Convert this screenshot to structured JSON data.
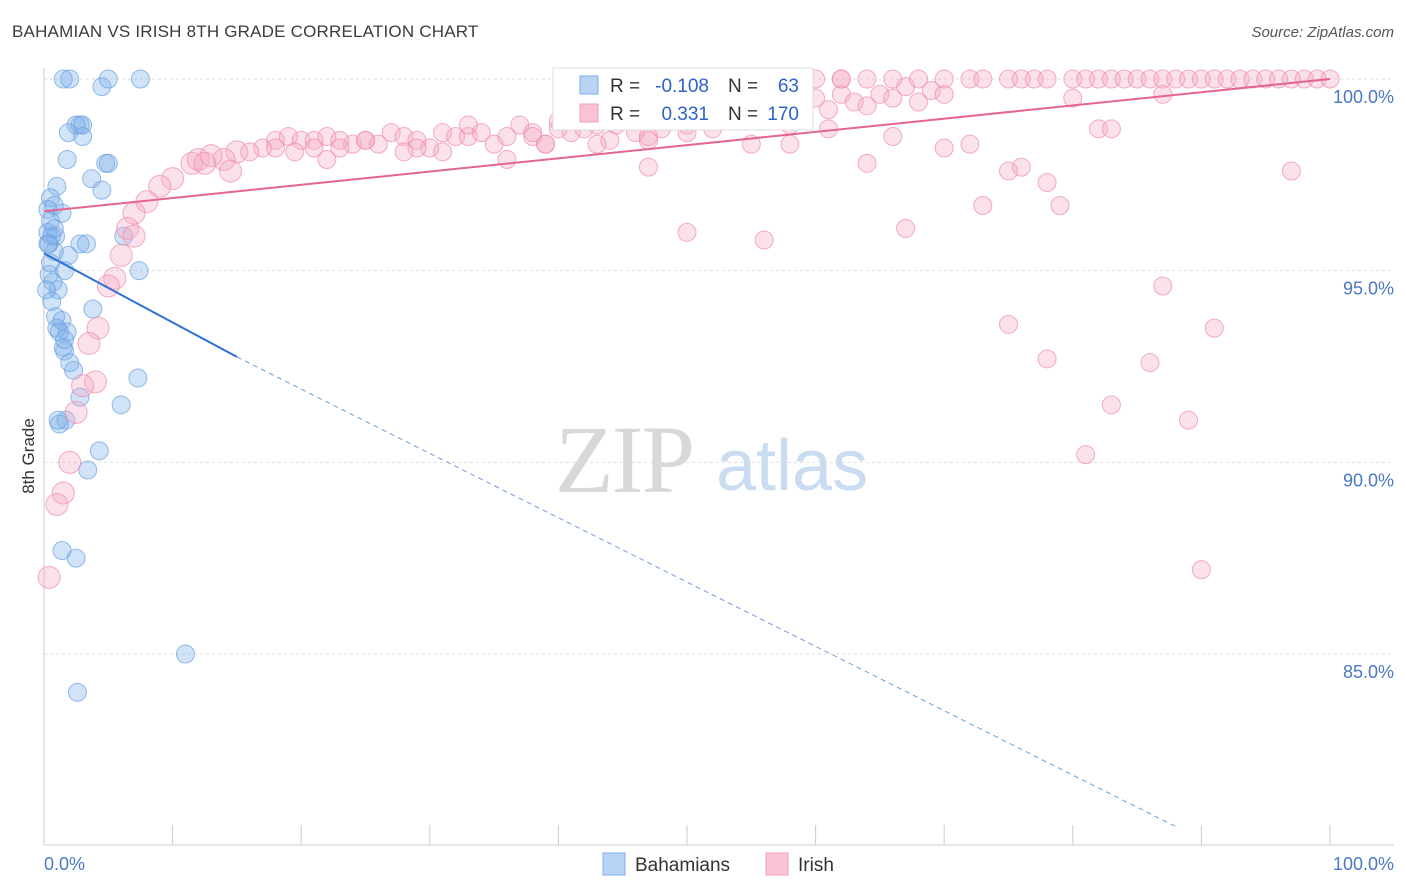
{
  "title": "BAHAMIAN VS IRISH 8TH GRADE CORRELATION CHART",
  "source": "Source: ZipAtlas.com",
  "watermark": {
    "zip": "ZIP",
    "atlas": "atlas"
  },
  "legend_top": [
    {
      "name": "Bahamians",
      "r_label": "R =",
      "r_value": "-0.108",
      "n_label": "N =",
      "n_value": "63",
      "color": "#7aaee8"
    },
    {
      "name": "Irish",
      "r_label": "R =",
      "r_value": "0.331",
      "n_label": "N =",
      "n_value": "170",
      "color": "#f0a0bb"
    }
  ],
  "chart_data": {
    "type": "scatter",
    "title": "BAHAMIAN VS IRISH 8TH GRADE CORRELATION CHART",
    "xlabel": "",
    "ylabel": "8th Grade",
    "xlim": [
      0,
      100
    ],
    "ylim": [
      80.5,
      100.5
    ],
    "x_tick_labels": [
      "0.0%",
      "100.0%"
    ],
    "y_ticks": [
      {
        "value": 100,
        "label": "100.0%"
      },
      {
        "value": 95,
        "label": "95.0%"
      },
      {
        "value": 90,
        "label": "90.0%"
      },
      {
        "value": 85,
        "label": "85.0%"
      }
    ],
    "series": [
      {
        "name": "Bahamians",
        "color": "#6a9fe0",
        "points": [
          [
            1.5,
            100
          ],
          [
            2.0,
            100
          ],
          [
            4.5,
            99.8
          ],
          [
            5.0,
            100
          ],
          [
            7.5,
            100
          ],
          [
            2.5,
            98.8
          ],
          [
            2.8,
            98.8
          ],
          [
            3.0,
            98.8
          ],
          [
            1.9,
            98.6
          ],
          [
            3.0,
            98.5
          ],
          [
            1.8,
            97.9
          ],
          [
            4.8,
            97.8
          ],
          [
            5.0,
            97.8
          ],
          [
            1.0,
            97.2
          ],
          [
            3.7,
            97.4
          ],
          [
            4.5,
            97.1
          ],
          [
            0.5,
            96.9
          ],
          [
            0.3,
            96.6
          ],
          [
            0.8,
            96.7
          ],
          [
            1.4,
            96.5
          ],
          [
            0.3,
            96.0
          ],
          [
            0.6,
            95.9
          ],
          [
            0.9,
            95.9
          ],
          [
            0.4,
            95.7
          ],
          [
            2.8,
            95.7
          ],
          [
            3.3,
            95.7
          ],
          [
            1.9,
            95.4
          ],
          [
            6.2,
            95.9
          ],
          [
            0.4,
            94.9
          ],
          [
            1.6,
            95.0
          ],
          [
            7.4,
            95.0
          ],
          [
            0.7,
            94.7
          ],
          [
            1.1,
            94.5
          ],
          [
            0.2,
            94.5
          ],
          [
            3.8,
            94.0
          ],
          [
            0.9,
            93.8
          ],
          [
            1.4,
            93.7
          ],
          [
            1.0,
            93.5
          ],
          [
            1.8,
            93.4
          ],
          [
            1.5,
            93.0
          ],
          [
            1.6,
            92.9
          ],
          [
            2.3,
            92.4
          ],
          [
            7.3,
            92.2
          ],
          [
            2.8,
            91.7
          ],
          [
            6.0,
            91.5
          ],
          [
            1.7,
            91.1
          ],
          [
            1.2,
            91.0
          ],
          [
            4.3,
            90.3
          ],
          [
            3.4,
            89.8
          ],
          [
            1.4,
            87.7
          ],
          [
            2.5,
            87.5
          ],
          [
            11.0,
            85.0
          ],
          [
            2.6,
            84.0
          ],
          [
            0.5,
            96.3
          ],
          [
            0.8,
            95.5
          ],
          [
            0.5,
            95.2
          ],
          [
            1.2,
            93.4
          ],
          [
            2.0,
            92.6
          ],
          [
            1.1,
            91.1
          ],
          [
            0.6,
            94.2
          ],
          [
            0.8,
            96.1
          ],
          [
            0.3,
            95.7
          ],
          [
            1.6,
            93.2
          ]
        ],
        "trend": {
          "x": [
            0,
            15
          ],
          "y": [
            95.45,
            92.75
          ]
        },
        "trend_dashed": {
          "x": [
            15,
            88
          ],
          "y": [
            92.75,
            80.5
          ]
        }
      },
      {
        "name": "Irish",
        "color": "#f08aab",
        "points": [
          [
            15,
            98.1
          ],
          [
            17,
            98.2
          ],
          [
            18,
            98.4
          ],
          [
            19,
            98.5
          ],
          [
            20,
            98.4
          ],
          [
            21,
            98.4
          ],
          [
            22,
            98.5
          ],
          [
            23,
            98.4
          ],
          [
            24,
            98.3
          ],
          [
            25,
            98.4
          ],
          [
            26,
            98.3
          ],
          [
            27,
            98.6
          ],
          [
            28,
            98.5
          ],
          [
            29,
            98.4
          ],
          [
            30,
            98.2
          ],
          [
            31,
            98.6
          ],
          [
            32,
            98.5
          ],
          [
            33,
            98.5
          ],
          [
            34,
            98.6
          ],
          [
            35,
            98.3
          ],
          [
            36,
            98.5
          ],
          [
            37,
            98.8
          ],
          [
            38,
            98.6
          ],
          [
            39,
            98.3
          ],
          [
            40,
            98.7
          ],
          [
            41,
            98.6
          ],
          [
            42,
            98.7
          ],
          [
            43,
            98.8
          ],
          [
            44,
            98.4
          ],
          [
            45,
            98.9
          ],
          [
            46,
            98.6
          ],
          [
            47,
            98.4
          ],
          [
            48,
            98.7
          ],
          [
            49,
            99.0
          ],
          [
            50,
            98.8
          ],
          [
            51,
            99.2
          ],
          [
            52,
            98.9
          ],
          [
            53,
            99.0
          ],
          [
            54,
            99.3
          ],
          [
            55,
            99.1
          ],
          [
            56,
            99.0
          ],
          [
            57,
            99.1
          ],
          [
            58,
            99.2
          ],
          [
            59,
            99.0
          ],
          [
            60,
            99.5
          ],
          [
            61,
            99.2
          ],
          [
            62,
            99.6
          ],
          [
            63,
            99.4
          ],
          [
            64,
            99.3
          ],
          [
            65,
            99.6
          ],
          [
            66,
            99.5
          ],
          [
            67,
            99.8
          ],
          [
            68,
            99.4
          ],
          [
            69,
            99.7
          ],
          [
            70,
            99.6
          ],
          [
            72,
            100
          ],
          [
            73,
            100
          ],
          [
            75,
            100
          ],
          [
            76,
            100
          ],
          [
            77,
            100
          ],
          [
            78,
            100
          ],
          [
            80,
            100
          ],
          [
            81,
            100
          ],
          [
            82,
            100
          ],
          [
            83,
            100
          ],
          [
            84,
            100
          ],
          [
            85,
            100
          ],
          [
            86,
            100
          ],
          [
            87,
            100
          ],
          [
            88,
            100
          ],
          [
            89,
            100
          ],
          [
            90,
            100
          ],
          [
            91,
            100
          ],
          [
            92,
            100
          ],
          [
            93,
            100
          ],
          [
            94,
            100
          ],
          [
            95,
            100
          ],
          [
            96,
            100
          ],
          [
            97,
            100
          ],
          [
            98,
            100
          ],
          [
            99,
            100
          ],
          [
            100,
            100
          ],
          [
            60,
            100
          ],
          [
            62,
            100
          ],
          [
            64,
            100
          ],
          [
            66,
            100
          ],
          [
            68,
            100
          ],
          [
            70,
            100
          ],
          [
            62,
            100
          ],
          [
            58,
            100
          ],
          [
            56,
            100
          ],
          [
            54,
            100
          ],
          [
            52,
            100
          ],
          [
            50,
            100
          ],
          [
            11.5,
            97.8
          ],
          [
            12,
            97.9
          ],
          [
            10,
            97.4
          ],
          [
            9,
            97.2
          ],
          [
            8,
            96.8
          ],
          [
            7,
            96.5
          ],
          [
            6.5,
            96.1
          ],
          [
            7,
            95.9
          ],
          [
            6,
            95.4
          ],
          [
            5.5,
            94.8
          ],
          [
            5,
            94.6
          ],
          [
            4.2,
            93.5
          ],
          [
            3.5,
            93.1
          ],
          [
            4,
            92.1
          ],
          [
            3,
            92.0
          ],
          [
            2.5,
            91.3
          ],
          [
            2,
            90.0
          ],
          [
            1.5,
            89.2
          ],
          [
            1.0,
            88.9
          ],
          [
            0.4,
            87.0
          ],
          [
            14,
            97.9
          ],
          [
            13,
            98.0
          ],
          [
            12.5,
            97.8
          ],
          [
            16,
            98.1
          ],
          [
            19.5,
            98.1
          ],
          [
            22,
            97.9
          ],
          [
            23,
            98.2
          ],
          [
            29,
            98.2
          ],
          [
            31,
            98.1
          ],
          [
            36,
            97.9
          ],
          [
            38,
            98.5
          ],
          [
            39,
            98.3
          ],
          [
            43,
            98.3
          ],
          [
            44.5,
            98.8
          ],
          [
            46,
            98.9
          ],
          [
            47,
            98.5
          ],
          [
            50,
            98.6
          ],
          [
            52,
            98.7
          ],
          [
            55,
            98.3
          ],
          [
            58,
            98.3
          ],
          [
            58,
            98.8
          ],
          [
            61,
            98.7
          ],
          [
            64,
            97.8
          ],
          [
            66,
            98.5
          ],
          [
            67,
            96.1
          ],
          [
            70,
            98.2
          ],
          [
            72,
            98.3
          ],
          [
            73,
            96.7
          ],
          [
            75,
            97.6
          ],
          [
            76,
            97.7
          ],
          [
            78,
            97.3
          ],
          [
            79,
            96.7
          ],
          [
            80,
            99.5
          ],
          [
            82,
            98.7
          ],
          [
            83,
            98.7
          ],
          [
            87,
            99.6
          ],
          [
            56,
            95.8
          ],
          [
            50,
            96.0
          ],
          [
            47,
            97.7
          ],
          [
            40,
            98.9
          ],
          [
            33,
            98.8
          ],
          [
            28,
            98.1
          ],
          [
            25,
            98.4
          ],
          [
            21,
            98.2
          ],
          [
            18,
            98.2
          ],
          [
            14.5,
            97.6
          ],
          [
            75,
            93.6
          ],
          [
            78,
            92.7
          ],
          [
            81,
            90.2
          ],
          [
            83,
            91.5
          ],
          [
            86,
            92.6
          ],
          [
            87,
            94.6
          ],
          [
            89,
            91.1
          ],
          [
            90,
            87.2
          ],
          [
            91,
            93.5
          ],
          [
            97,
            97.6
          ]
        ],
        "trend": {
          "x": [
            0,
            100
          ],
          "y": [
            96.55,
            100.0
          ]
        }
      }
    ]
  }
}
